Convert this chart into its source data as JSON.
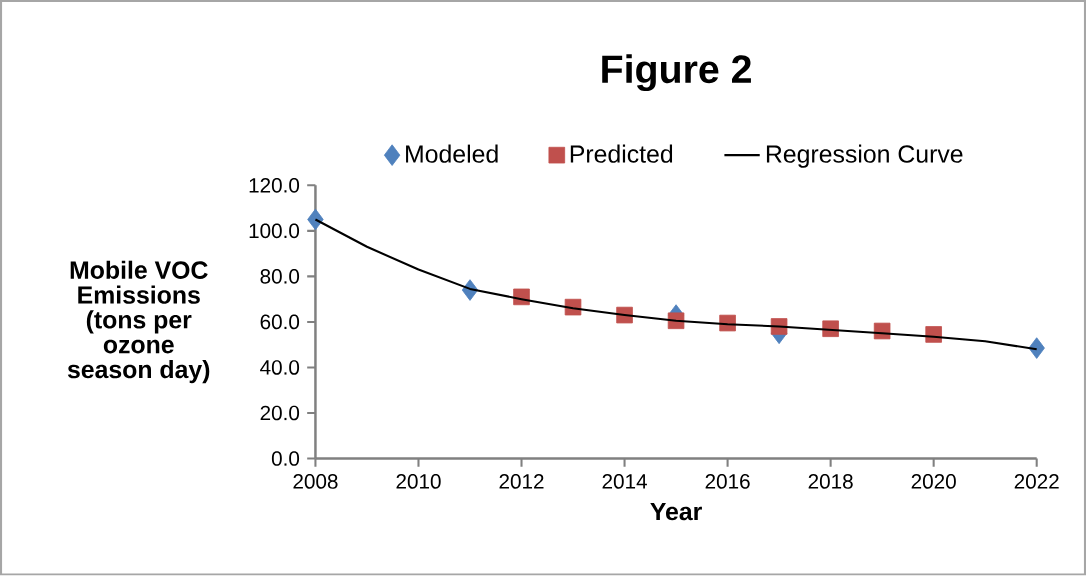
{
  "chart_data": {
    "type": "scatter",
    "title": "Figure 2",
    "xlabel": "Year",
    "ylabel": "Mobile VOC Emissions (tons per ozone season day)",
    "series": [
      {
        "name": "Modeled",
        "marker": "diamond",
        "color": "#4f81bd",
        "x": [
          2008,
          2011,
          2015,
          2017,
          2022
        ],
        "values": [
          105,
          74,
          63,
          55,
          48.5
        ]
      },
      {
        "name": "Predicted",
        "marker": "square",
        "color": "#c0504d",
        "x": [
          2012,
          2013,
          2014,
          2015,
          2016,
          2017,
          2018,
          2019,
          2020
        ],
        "values": [
          71,
          66.5,
          63,
          60.5,
          59.5,
          58,
          57,
          56,
          54.5
        ]
      },
      {
        "name": "Regression Curve",
        "type": "line",
        "marker": "none",
        "color": "#000000",
        "x": [
          2008,
          2009,
          2010,
          2011,
          2012,
          2013,
          2014,
          2015,
          2016,
          2017,
          2018,
          2019,
          2020,
          2021,
          2022
        ],
        "values": [
          105,
          93,
          83,
          74.5,
          70,
          66,
          63,
          60.5,
          59,
          58,
          56.5,
          55,
          53.5,
          51.5,
          48
        ]
      }
    ],
    "xlim": [
      2008,
      2022
    ],
    "xticks": [
      2008,
      2010,
      2012,
      2014,
      2016,
      2018,
      2020,
      2022
    ],
    "ylim": [
      0,
      120
    ],
    "yticks": [
      {
        "value": 0,
        "label": "0.0"
      },
      {
        "value": 20,
        "label": "20.0"
      },
      {
        "value": 40,
        "label": "40.0"
      },
      {
        "value": 60,
        "label": "60.0"
      },
      {
        "value": 80,
        "label": "80.0"
      },
      {
        "value": 100,
        "label": "100.0"
      },
      {
        "value": 120,
        "label": "120.0"
      }
    ],
    "grid": false,
    "legend": "top"
  }
}
